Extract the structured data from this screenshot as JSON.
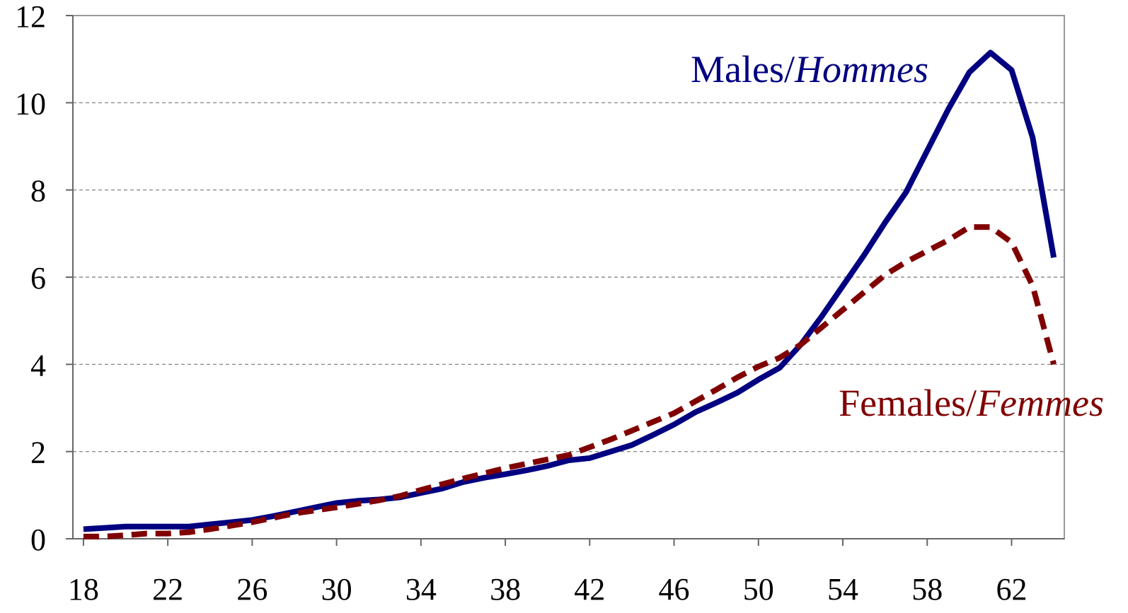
{
  "chart_data": {
    "type": "line",
    "x": [
      18,
      19,
      20,
      21,
      22,
      23,
      24,
      25,
      26,
      27,
      28,
      29,
      30,
      31,
      32,
      33,
      34,
      35,
      36,
      37,
      38,
      39,
      40,
      41,
      42,
      43,
      44,
      45,
      46,
      47,
      48,
      49,
      50,
      51,
      52,
      53,
      54,
      55,
      56,
      57,
      58,
      59,
      60,
      61,
      62,
      63,
      64
    ],
    "series": [
      {
        "name": "Males/Hommes",
        "color": "#000080",
        "dash": false,
        "values": [
          0.22,
          0.25,
          0.28,
          0.28,
          0.28,
          0.28,
          0.33,
          0.38,
          0.43,
          0.52,
          0.62,
          0.72,
          0.82,
          0.87,
          0.9,
          0.95,
          1.05,
          1.15,
          1.3,
          1.4,
          1.48,
          1.57,
          1.67,
          1.8,
          1.85,
          2.0,
          2.15,
          2.38,
          2.62,
          2.9,
          3.12,
          3.35,
          3.65,
          3.92,
          4.45,
          5.1,
          5.8,
          6.5,
          7.25,
          7.95,
          8.9,
          9.85,
          10.7,
          11.15,
          10.75,
          9.2,
          6.45
        ]
      },
      {
        "name": "Females/Femmes",
        "color": "#800000",
        "dash": true,
        "values": [
          0.05,
          0.05,
          0.08,
          0.12,
          0.12,
          0.15,
          0.22,
          0.3,
          0.38,
          0.48,
          0.58,
          0.65,
          0.72,
          0.8,
          0.88,
          0.98,
          1.12,
          1.25,
          1.38,
          1.5,
          1.62,
          1.72,
          1.82,
          1.92,
          2.1,
          2.28,
          2.48,
          2.68,
          2.88,
          3.15,
          3.42,
          3.7,
          3.95,
          4.15,
          4.45,
          4.85,
          5.25,
          5.65,
          6.05,
          6.35,
          6.6,
          6.85,
          7.15,
          7.15,
          6.8,
          5.8,
          4.0
        ]
      }
    ],
    "xlim": [
      17.5,
      64.5
    ],
    "xticks": [
      18,
      22,
      26,
      30,
      34,
      38,
      42,
      46,
      50,
      54,
      58,
      62
    ],
    "ylim": [
      0,
      12
    ],
    "yticks": [
      0,
      2,
      4,
      6,
      8,
      10,
      12
    ],
    "grid": true
  }
}
